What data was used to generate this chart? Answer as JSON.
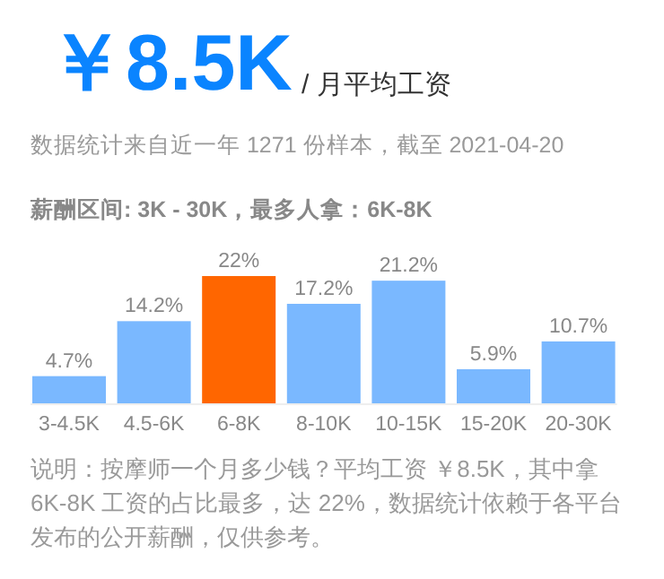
{
  "chart_data": {
    "type": "bar",
    "title": "￥8.5K",
    "subtitle": "/ 月平均工资",
    "annotations": [
      "数据统计来自近一年 1271 份样本，截至 2021-04-20",
      "薪酬区间: 3K - 30K，最多人拿：6K-8K",
      "说明：按摩师一个月多少钱？平均工资 ￥8.5K，其中拿 6K-8K 工资的占比最多，达 22%，数据统计依赖于各平台发布的公开薪酬，仅供参考。"
    ],
    "categories": [
      "3-4.5K",
      "4.5-6K",
      "6-8K",
      "8-10K",
      "10-15K",
      "15-20K",
      "20-30K"
    ],
    "values": [
      4.7,
      14.2,
      22,
      17.2,
      21.2,
      5.9,
      10.7
    ],
    "value_labels": [
      "4.7%",
      "14.2%",
      "22%",
      "17.2%",
      "21.2%",
      "5.9%",
      "10.7%"
    ],
    "colors": [
      "#7ab8ff",
      "#7ab8ff",
      "#ff6600",
      "#7ab8ff",
      "#7ab8ff",
      "#7ab8ff",
      "#7ab8ff"
    ]
  }
}
